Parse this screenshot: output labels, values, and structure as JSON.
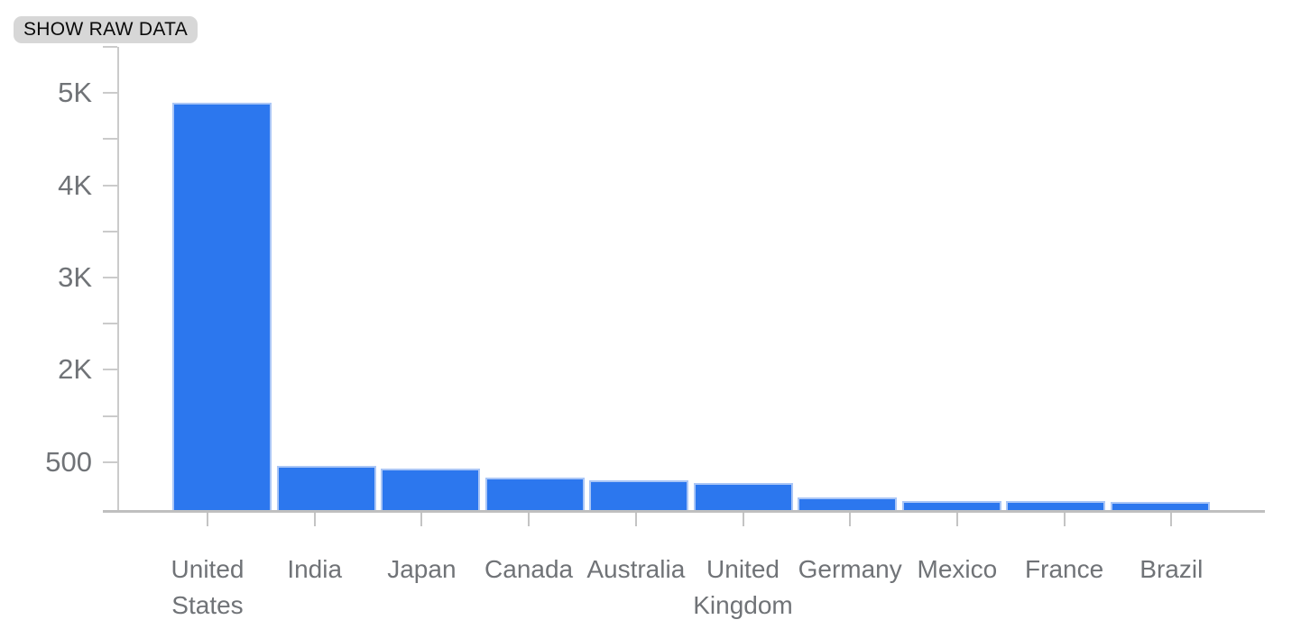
{
  "toolbar": {
    "show_raw_data_label": "SHOW RAW DATA"
  },
  "colors": {
    "bar": "#2c77ee",
    "bar_edge": "#aac6f6",
    "axis": "#cbcbcb",
    "baseline": "#bfbfbf",
    "label_text": "#707377",
    "chip_bg": "#d7d7d7",
    "chip_text": "#0a0a0a"
  },
  "chart_data": {
    "type": "bar",
    "title": "",
    "xlabel": "",
    "ylabel": "",
    "categories": [
      "United States",
      "India",
      "Japan",
      "Canada",
      "Australia",
      "United Kingdom",
      "Germany",
      "Mexico",
      "France",
      "Brazil"
    ],
    "values": [
      4880,
      525,
      495,
      390,
      360,
      325,
      155,
      110,
      105,
      100
    ],
    "ylim": [
      0,
      5000
    ],
    "y_tick_labels": [
      "5K",
      "4K",
      "3K",
      "2K",
      "500"
    ],
    "labeled_tick_indices": [
      1,
      3,
      5,
      7,
      9
    ],
    "n_y_ticks": 10,
    "grid": false,
    "legend": false,
    "bar_color": "#2c77ee"
  }
}
